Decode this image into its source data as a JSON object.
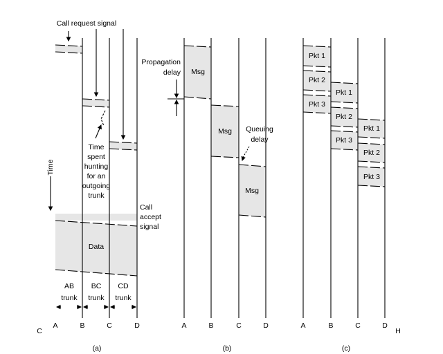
{
  "panel_a": {
    "call_request_label": "Call request signal",
    "time_label": "Time",
    "hunting_lines": [
      "Time",
      "spent",
      "hunting",
      "for an",
      "outgoing",
      "trunk"
    ],
    "call_accept_lines": [
      "Call",
      "accept",
      "signal"
    ],
    "data_label": "Data",
    "trunks": [
      {
        "name": "AB",
        "word": "trunk"
      },
      {
        "name": "BC",
        "word": "trunk"
      },
      {
        "name": "CD",
        "word": "trunk"
      }
    ],
    "nodes": [
      "A",
      "B",
      "C",
      "D"
    ],
    "caption": "(a)"
  },
  "panel_b": {
    "propagation_lines": [
      "Propagation",
      "delay"
    ],
    "queuing_lines": [
      "Queuing",
      "delay"
    ],
    "msg_labels": [
      "Msg",
      "Msg",
      "Msg"
    ],
    "nodes": [
      "A",
      "B",
      "C",
      "D"
    ],
    "caption": "(b)"
  },
  "panel_c": {
    "packets": [
      "Pkt 1",
      "Pkt 2",
      "Pkt 3"
    ],
    "nodes": [
      "A",
      "B",
      "C",
      "D"
    ],
    "caption": "(c)"
  },
  "margin_left": "C",
  "margin_right": "H"
}
